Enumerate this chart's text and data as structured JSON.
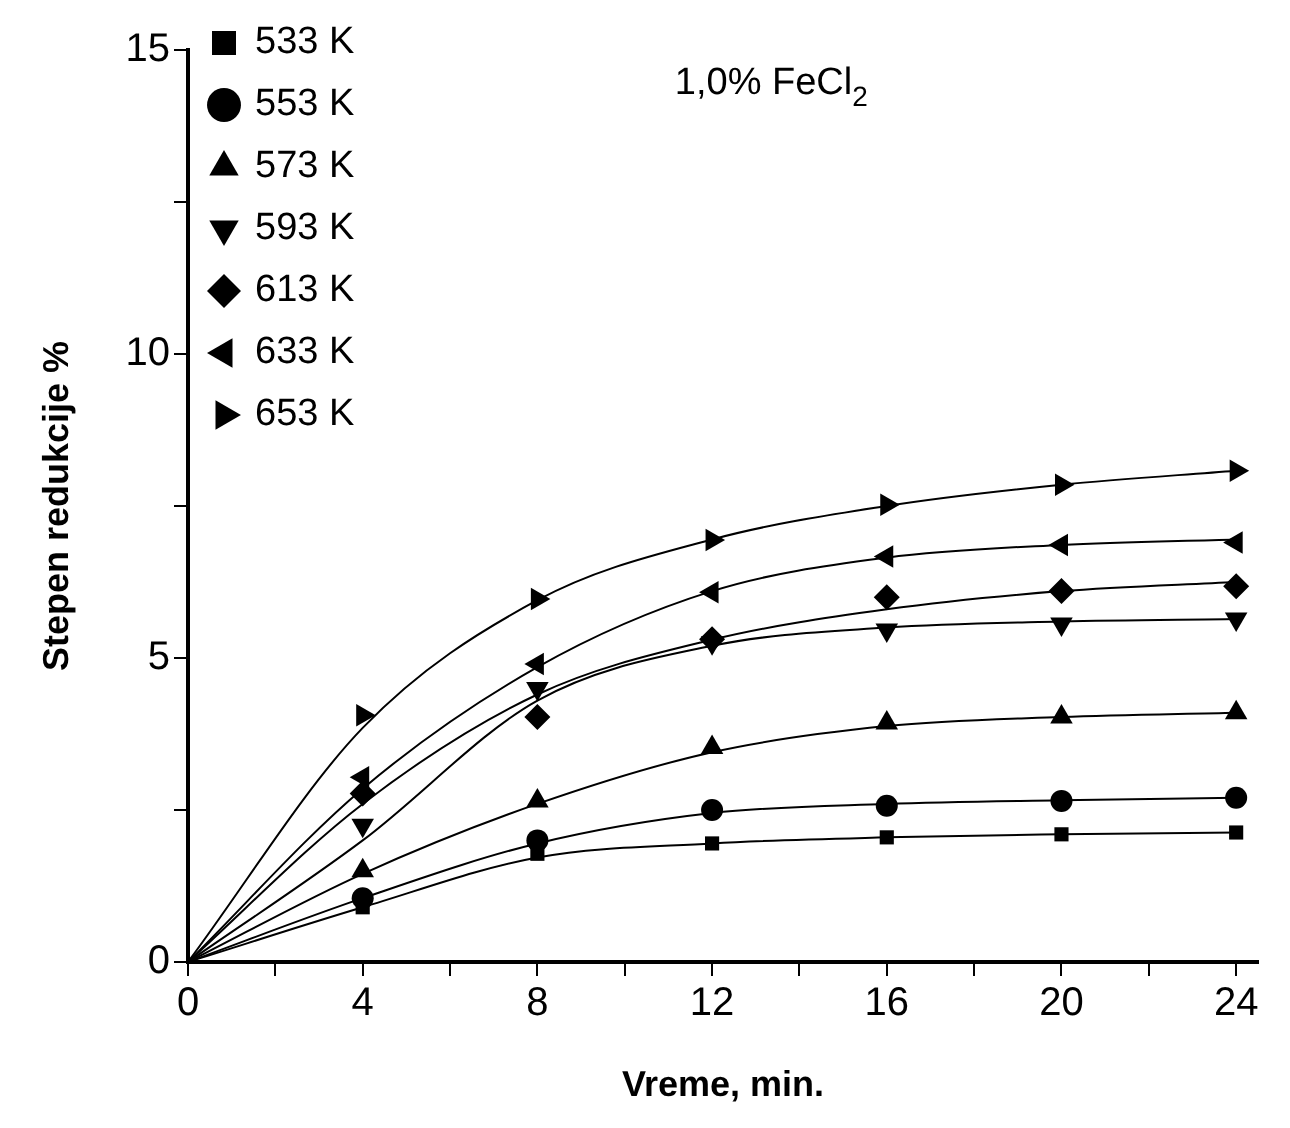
{
  "chart_data": {
    "type": "scatter",
    "xlabel": "Vreme, min.",
    "ylabel": "Stepen redukcije %",
    "annotations": [
      "1,0% FeCl$_{2}$"
    ],
    "x": [
      4,
      8,
      12,
      16,
      20,
      24
    ],
    "xlim": [
      0,
      24.5
    ],
    "ylim": [
      0,
      15
    ],
    "xticks": [
      0,
      {
        "value": 2,
        "label": null
      },
      4,
      {
        "value": 6,
        "label": null
      },
      8,
      {
        "value": 10,
        "label": null
      },
      12,
      {
        "value": 14,
        "label": null
      },
      16,
      {
        "value": 18,
        "label": null
      },
      20,
      {
        "value": 22,
        "label": null
      },
      24
    ],
    "yticks": [
      0,
      {
        "value": 2.5,
        "label": null
      },
      5,
      {
        "value": 7.5,
        "label": null
      },
      10,
      {
        "value": 12.5,
        "label": null
      },
      15
    ],
    "legend": "top left",
    "grid": false,
    "series": [
      {
        "name": "533 K",
        "color": "#000000",
        "marker": "square",
        "values": [
          0.9,
          1.78,
          1.95,
          2.05,
          2.1,
          2.13
        ]
      },
      {
        "name": "553 K",
        "color": "#000000",
        "marker": "circle",
        "values": [
          1.05,
          2.0,
          2.5,
          2.57,
          2.65,
          2.7
        ]
      },
      {
        "name": "573 K",
        "color": "#000000",
        "marker": "triangle",
        "values": [
          1.5,
          2.65,
          3.53,
          3.93,
          4.03,
          4.1
        ]
      },
      {
        "name": "593 K",
        "color": "#000000",
        "marker": "triangle-down",
        "values": [
          2.25,
          4.5,
          5.25,
          5.46,
          5.56,
          5.64
        ]
      },
      {
        "name": "613 K",
        "color": "#000000",
        "marker": "diamond",
        "values": [
          2.77,
          4.03,
          5.31,
          6.0,
          6.1,
          6.18
        ]
      },
      {
        "name": "633 K",
        "color": "#000000",
        "marker": "triangle-left",
        "values": [
          3.04,
          4.9,
          6.08,
          6.67,
          6.86,
          6.9
        ]
      },
      {
        "name": "653 K",
        "color": "#000000",
        "marker": "triangle-right",
        "values": [
          4.06,
          5.97,
          6.94,
          7.52,
          7.85,
          8.08
        ]
      },
      {
        "type": "line",
        "color": "#000000",
        "marker": "none",
        "x": [
          0,
          4,
          8,
          12,
          16,
          20,
          24
        ],
        "values": [
          0,
          0.9,
          1.72,
          1.95,
          2.05,
          2.1,
          2.13
        ]
      },
      {
        "type": "line",
        "color": "#000000",
        "marker": "none",
        "x": [
          0,
          4,
          8,
          12,
          16,
          20,
          24
        ],
        "values": [
          0,
          1.05,
          1.95,
          2.45,
          2.6,
          2.66,
          2.7
        ]
      },
      {
        "type": "line",
        "color": "#000000",
        "marker": "none",
        "x": [
          0,
          4,
          8,
          12,
          16,
          20,
          24
        ],
        "values": [
          0,
          1.45,
          2.6,
          3.45,
          3.88,
          4.03,
          4.1
        ]
      },
      {
        "type": "line",
        "color": "#000000",
        "marker": "none",
        "x": [
          0,
          4,
          8,
          12,
          16,
          20,
          24
        ],
        "values": [
          0,
          2.0,
          4.3,
          5.2,
          5.5,
          5.6,
          5.64
        ]
      },
      {
        "type": "line",
        "color": "#000000",
        "marker": "none",
        "x": [
          0,
          4,
          8,
          12,
          16,
          20,
          24
        ],
        "values": [
          0,
          2.6,
          4.4,
          5.3,
          5.8,
          6.1,
          6.25
        ]
      },
      {
        "type": "line",
        "color": "#000000",
        "marker": "none",
        "x": [
          0,
          4,
          8,
          12,
          16,
          20,
          24
        ],
        "values": [
          0,
          2.85,
          4.85,
          6.1,
          6.65,
          6.86,
          6.95
        ]
      },
      {
        "type": "line",
        "color": "#000000",
        "marker": "none",
        "x": [
          0,
          4,
          8,
          12,
          16,
          20,
          24
        ],
        "values": [
          0,
          3.85,
          5.95,
          6.95,
          7.5,
          7.85,
          8.08
        ]
      }
    ]
  }
}
